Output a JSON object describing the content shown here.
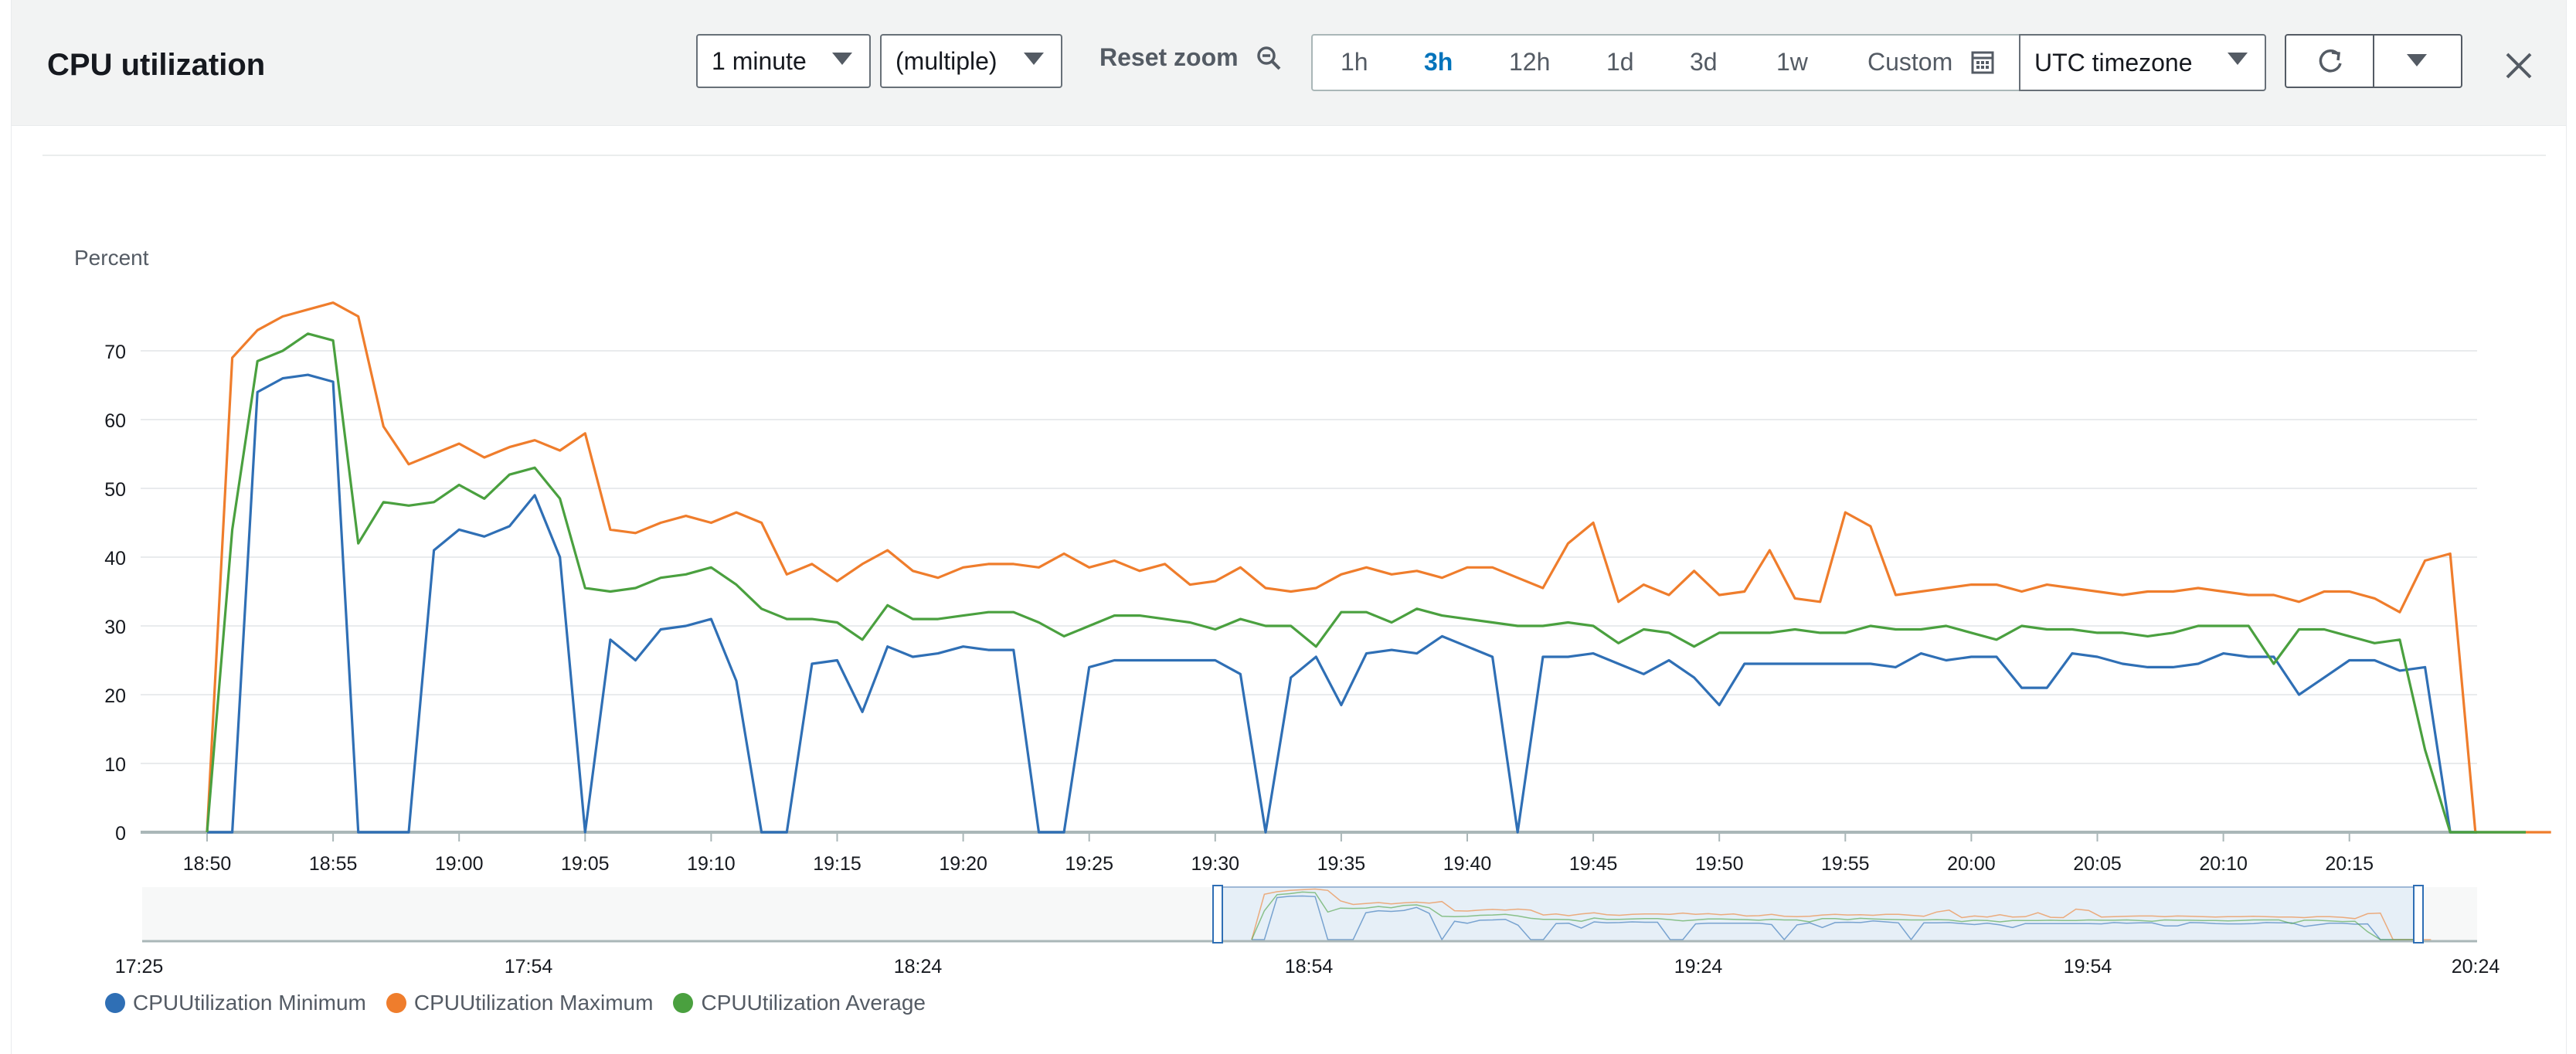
{
  "header": {
    "title": "CPU utilization",
    "period_dropdown": "1 minute",
    "stat_dropdown": "(multiple)",
    "reset_zoom": "Reset zoom",
    "ranges": [
      "1h",
      "3h",
      "12h",
      "1d",
      "3d",
      "1w"
    ],
    "active_range": "3h",
    "custom_label": "Custom",
    "timezone": "UTC timezone"
  },
  "colors": {
    "minimum": "#2f6fb5",
    "maximum": "#ef7d2c",
    "average": "#4aa03f",
    "active_range": "#0073bb"
  },
  "icons": [
    "zoom-out-icon",
    "calendar-icon",
    "refresh-icon",
    "caret-down-icon",
    "close-icon"
  ],
  "chart_data": {
    "type": "line",
    "ylabel": "Percent",
    "ylim": [
      0,
      75
    ],
    "y_ticks": [
      0,
      10,
      20,
      30,
      40,
      50,
      60,
      70
    ],
    "x_start": "18:50",
    "x_step_minutes": 1,
    "x_ticks": [
      "18:50",
      "18:55",
      "19:00",
      "19:05",
      "19:10",
      "19:15",
      "19:20",
      "19:25",
      "19:30",
      "19:35",
      "19:40",
      "19:45",
      "19:50",
      "19:55",
      "20:00",
      "20:05",
      "20:10",
      "20:15"
    ],
    "grid": true,
    "legend_position": "bottom-left",
    "series": [
      {
        "name": "CPUUtilization Minimum",
        "color": "#2f6fb5",
        "values": [
          0,
          0,
          64,
          66,
          66.5,
          65.5,
          0,
          0,
          0,
          41,
          44,
          43,
          44.5,
          49,
          40,
          0,
          28,
          25,
          29.5,
          30,
          31,
          22,
          0,
          0,
          24.5,
          25,
          17.5,
          27,
          25.5,
          26,
          27,
          26.5,
          26.5,
          0,
          0,
          24,
          25,
          25,
          25,
          25,
          25,
          23,
          0,
          22.5,
          25.5,
          18.5,
          26,
          26.5,
          26,
          28.5,
          27,
          25.5,
          0,
          25.5,
          25.5,
          26,
          24.5,
          23,
          25,
          22.5,
          18.5,
          24.5,
          24.5,
          24.5,
          24.5,
          24.5,
          24.5,
          24,
          26,
          25,
          25.5,
          25.5,
          21,
          21,
          26,
          25.5,
          24.5,
          24,
          24,
          24.5,
          26,
          25.5,
          25.5,
          20,
          22.5,
          25,
          25,
          23.5,
          24,
          0,
          0,
          0,
          0
        ]
      },
      {
        "name": "CPUUtilization Maximum",
        "color": "#ef7d2c",
        "values": [
          0,
          69,
          73,
          75,
          76,
          77,
          75,
          59,
          53.5,
          55,
          56.5,
          54.5,
          56,
          57,
          55.5,
          58,
          44,
          43.5,
          45,
          46,
          45,
          46.5,
          45,
          37.5,
          39,
          36.5,
          39,
          41,
          38,
          37,
          38.5,
          39,
          39,
          38.5,
          40.5,
          38.5,
          39.5,
          38,
          39,
          36,
          36.5,
          38.5,
          35.5,
          35,
          35.5,
          37.5,
          38.5,
          37.5,
          38,
          37,
          38.5,
          38.5,
          37,
          35.5,
          42,
          45,
          33.5,
          36,
          34.5,
          38,
          34.5,
          35,
          41,
          34,
          33.5,
          46.5,
          44.5,
          34.5,
          35,
          35.5,
          36,
          36,
          35,
          36,
          35.5,
          35,
          34.5,
          35,
          35,
          35.5,
          35,
          34.5,
          34.5,
          33.5,
          35,
          35,
          34,
          32,
          39.5,
          40.5,
          0,
          0,
          0,
          0
        ]
      },
      {
        "name": "CPUUtilization Average",
        "color": "#4aa03f",
        "values": [
          0,
          44,
          68.5,
          70,
          72.5,
          71.5,
          42,
          48,
          47.5,
          48,
          50.5,
          48.5,
          52,
          53,
          48.5,
          35.5,
          35,
          35.5,
          37,
          37.5,
          38.5,
          36,
          32.5,
          31,
          31,
          30.5,
          28,
          33,
          31,
          31,
          31.5,
          32,
          32,
          30.5,
          28.5,
          30,
          31.5,
          31.5,
          31,
          30.5,
          29.5,
          31,
          30,
          30,
          27,
          32,
          32,
          30.5,
          32.5,
          31.5,
          31,
          30.5,
          30,
          30,
          30.5,
          30,
          27.5,
          29.5,
          29,
          27,
          29,
          29,
          29,
          29.5,
          29,
          29,
          30,
          29.5,
          29.5,
          30,
          29,
          28,
          30,
          29.5,
          29.5,
          29,
          29,
          28.5,
          29,
          30,
          30,
          30,
          24.5,
          29.5,
          29.5,
          28.5,
          27.5,
          28,
          12,
          0,
          0,
          0,
          0
        ]
      }
    ],
    "navigator": {
      "x_ticks": [
        "17:25",
        "17:54",
        "18:24",
        "18:54",
        "19:24",
        "19:54",
        "20:24"
      ]
    }
  }
}
